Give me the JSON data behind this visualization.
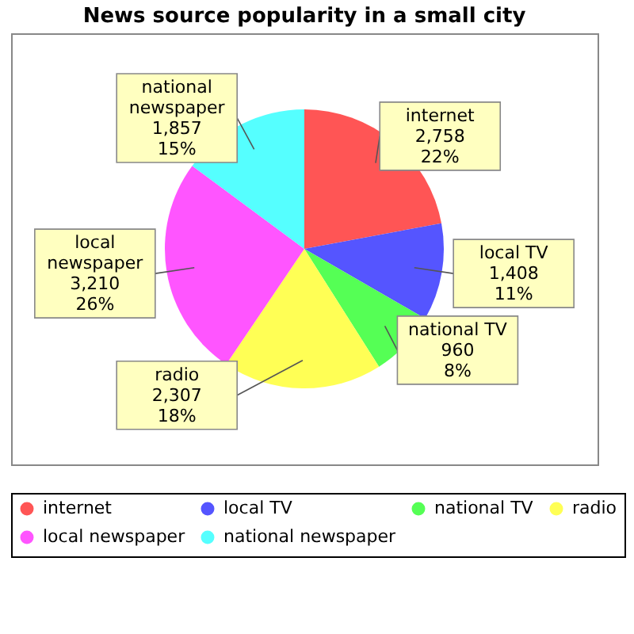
{
  "chart_data": {
    "type": "pie",
    "title": "News source popularity in a small city",
    "categories": [
      "internet",
      "local TV",
      "national TV",
      "radio",
      "local newspaper",
      "national newspaper"
    ],
    "values": [
      2758,
      1408,
      960,
      2307,
      3210,
      1857
    ],
    "value_labels": [
      "2,758\n22%",
      "1,408\n11%",
      "960\n8%",
      "2,307\n18%",
      "3,210\n26%",
      "1,857\n15%"
    ],
    "colors": [
      "#ff5555",
      "#5555ff",
      "#55ff55",
      "#ffff55",
      "#ff55ff",
      "#55ffff"
    ],
    "legend": "bottom"
  }
}
